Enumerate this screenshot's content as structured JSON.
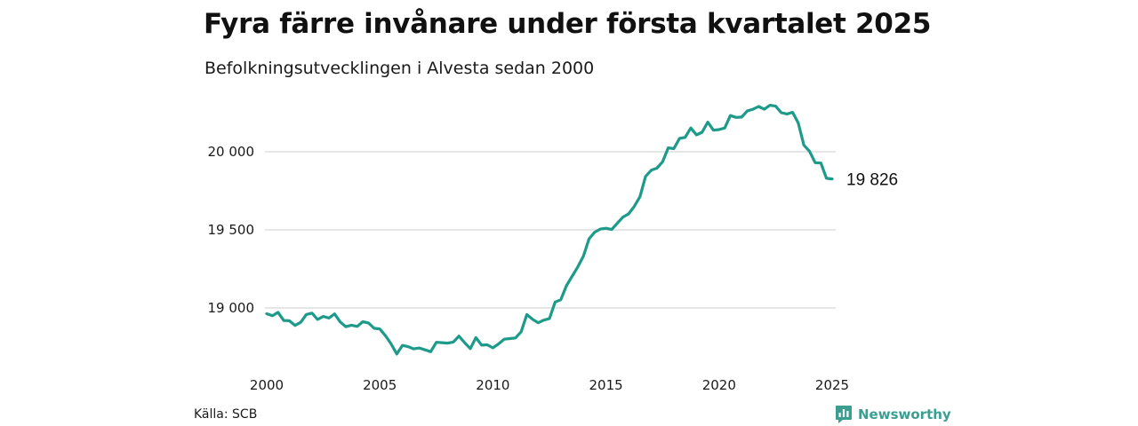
{
  "header": {
    "title": "Fyra färre invånare under första kvartalet 2025",
    "subtitle": "Befolkningsutvecklingen i Alvesta sedan 2000"
  },
  "footer": {
    "source": "Källa: SCB",
    "brand": "Newsworthy"
  },
  "colors": {
    "line": "#1d9a8a",
    "grid": "#dddddd",
    "brand": "#3a9e91"
  },
  "chart_data": {
    "type": "line",
    "x_ticks": [
      2000,
      2005,
      2010,
      2015,
      2020,
      2025
    ],
    "x_tick_labels": [
      "2000",
      "2005",
      "2010",
      "2015",
      "2020",
      "2025"
    ],
    "y_ticks": [
      19000,
      19500,
      20000
    ],
    "y_tick_labels": [
      "19 000",
      "19 500",
      "20 000"
    ],
    "xlim": [
      2000,
      2025
    ],
    "ylim": [
      18650,
      20350
    ],
    "grid": "horizontal",
    "end_label": "19 826",
    "series": [
      {
        "x": [
          2000.0,
          2000.25,
          2000.5,
          2000.75,
          2001.0,
          2001.25,
          2001.5,
          2001.75,
          2002.0,
          2002.25,
          2002.5,
          2002.75,
          2003.0,
          2003.25,
          2003.5,
          2003.75,
          2004.0,
          2004.25,
          2004.5,
          2004.75,
          2005.0,
          2005.25,
          2005.5,
          2005.75,
          2006.0,
          2006.25,
          2006.5,
          2006.75,
          2007.0,
          2007.25,
          2007.5,
          2007.75,
          2008.0,
          2008.25,
          2008.5,
          2008.75,
          2009.0,
          2009.25,
          2009.5,
          2009.75,
          2010.0,
          2010.25,
          2010.5,
          2010.75,
          2011.0,
          2011.25,
          2011.5,
          2011.75,
          2012.0,
          2012.25,
          2012.5,
          2012.75,
          2013.0,
          2013.25,
          2013.5,
          2013.75,
          2014.0,
          2014.25,
          2014.5,
          2014.75,
          2015.0,
          2015.25,
          2015.5,
          2015.75,
          2016.0,
          2016.25,
          2016.5,
          2016.75,
          2017.0,
          2017.25,
          2017.5,
          2017.75,
          2018.0,
          2018.25,
          2018.5,
          2018.75,
          2019.0,
          2019.25,
          2019.5,
          2019.75,
          2020.0,
          2020.25,
          2020.5,
          2020.75,
          2021.0,
          2021.25,
          2021.5,
          2021.75,
          2022.0,
          2022.25,
          2022.5,
          2022.75,
          2023.0,
          2023.25,
          2023.5,
          2023.75,
          2024.0,
          2024.25,
          2024.5,
          2024.75,
          2025.0
        ],
        "values": [
          18963,
          18950,
          18972,
          18920,
          18918,
          18888,
          18908,
          18958,
          18967,
          18926,
          18946,
          18935,
          18962,
          18910,
          18880,
          18890,
          18882,
          18912,
          18904,
          18870,
          18866,
          18822,
          18770,
          18705,
          18760,
          18752,
          18738,
          18744,
          18732,
          18720,
          18780,
          18778,
          18775,
          18782,
          18820,
          18778,
          18740,
          18810,
          18762,
          18764,
          18745,
          18770,
          18800,
          18804,
          18808,
          18848,
          18958,
          18928,
          18905,
          18922,
          18932,
          19038,
          19052,
          19142,
          19202,
          19262,
          19332,
          19442,
          19485,
          19505,
          19510,
          19502,
          19542,
          19582,
          19602,
          19650,
          19712,
          19842,
          19882,
          19895,
          19935,
          20025,
          20020,
          20085,
          20092,
          20152,
          20108,
          20125,
          20190,
          20138,
          20142,
          20152,
          20232,
          20220,
          20222,
          20262,
          20272,
          20290,
          20272,
          20298,
          20292,
          20250,
          20242,
          20252,
          20185,
          20042,
          20002,
          19930,
          19928,
          19830,
          19826
        ]
      }
    ]
  }
}
